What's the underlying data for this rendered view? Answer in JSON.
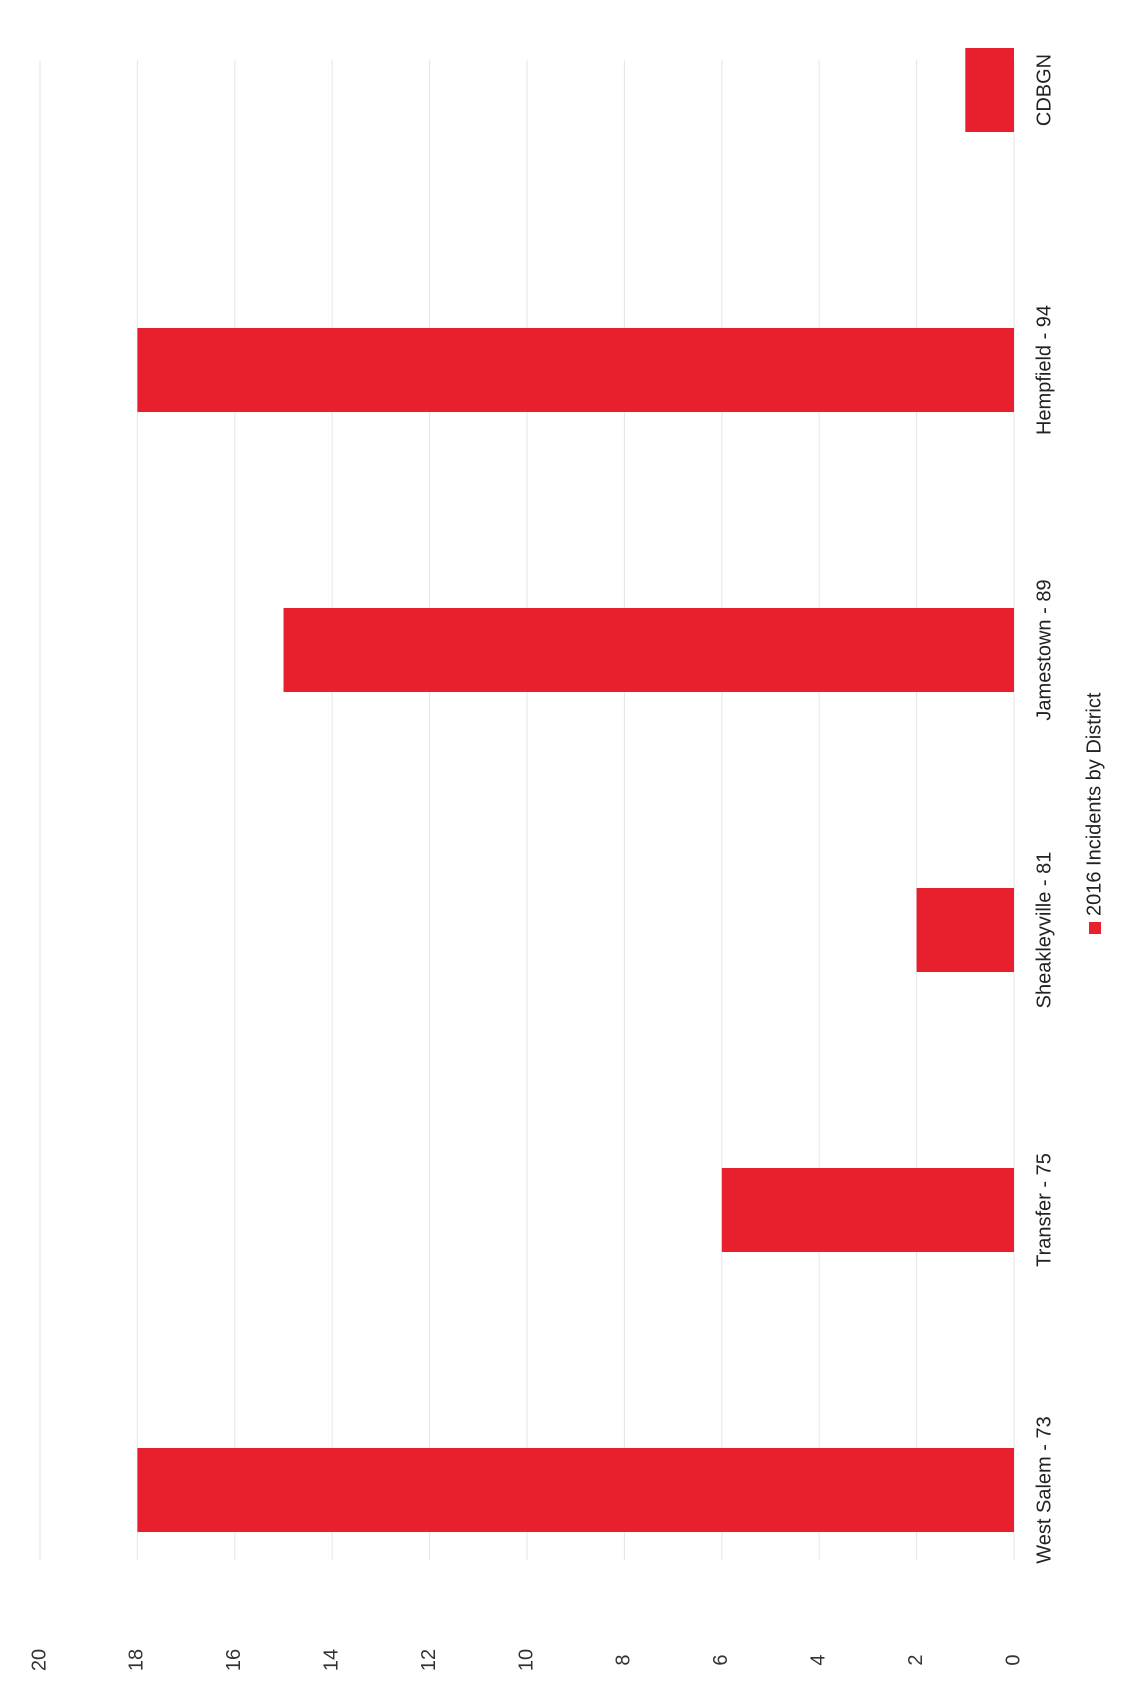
{
  "chart_data": {
    "type": "bar",
    "orientation": "rotated-90-clockwise",
    "categories": [
      "West Salem - 73",
      "Transfer - 75",
      "Sheakleyville - 81",
      "Jamestown - 89",
      "Hempfield - 94",
      "CDBGN"
    ],
    "series": [
      {
        "name": "2016 Incidents by District",
        "values": [
          18,
          6,
          2,
          15,
          18,
          1
        ]
      }
    ],
    "ylim": [
      0,
      20
    ],
    "yticks": [
      0,
      2,
      4,
      6,
      8,
      10,
      12,
      14,
      16,
      18,
      20
    ],
    "grid": true,
    "legend": "bottom",
    "bar_color": "#e8202e"
  }
}
